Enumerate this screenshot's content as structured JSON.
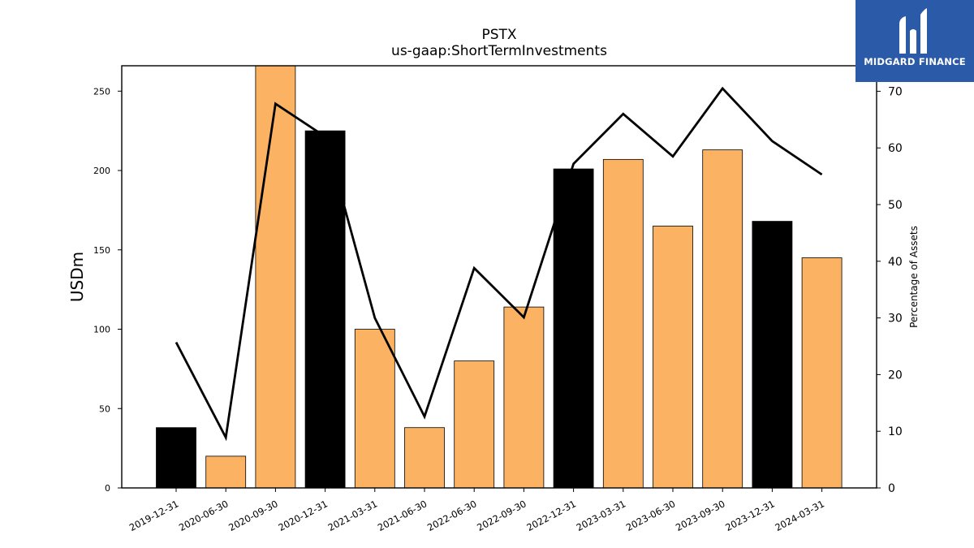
{
  "chart_data": {
    "type": "bar",
    "title": "PSTX",
    "subtitle": "us-gaap:ShortTermInvestments",
    "ylabel": "USDm",
    "y2label": "Percentage of Assets",
    "categories": [
      "2019-12-31",
      "2020-06-30",
      "2020-09-30",
      "2020-12-31",
      "2021-03-31",
      "2021-06-30",
      "2022-06-30",
      "2022-09-30",
      "2022-12-31",
      "2023-03-31",
      "2023-06-30",
      "2023-09-30",
      "2023-12-31",
      "2024-03-31"
    ],
    "series": [
      {
        "type": "bar",
        "values": [
          38,
          20,
          267,
          225,
          100,
          38,
          80,
          114,
          201,
          207,
          165,
          213,
          168,
          145
        ],
        "highlight": [
          true,
          false,
          false,
          true,
          false,
          false,
          false,
          false,
          true,
          false,
          false,
          false,
          true,
          false
        ]
      },
      {
        "type": "line",
        "axis": "right",
        "values": [
          25.7,
          8.9,
          67.8,
          62.0,
          30.0,
          12.6,
          38.8,
          30.1,
          57.2,
          66.0,
          58.5,
          70.5,
          61.2,
          55.3
        ]
      }
    ],
    "ylim": [
      0,
      266
    ],
    "y2lim": [
      0,
      74.5
    ],
    "yticks": [
      0,
      50,
      100,
      150,
      200,
      250
    ],
    "y2ticks": [
      0,
      10,
      20,
      30,
      40,
      50,
      60,
      70
    ],
    "colors": {
      "bar": "#fbb262",
      "bar_highlight": "#000000",
      "line": "#000000",
      "edge": "#000000"
    },
    "grid": false
  },
  "logo": {
    "text": "MIDGARD FINANCE",
    "color": "#2b5aa8"
  }
}
